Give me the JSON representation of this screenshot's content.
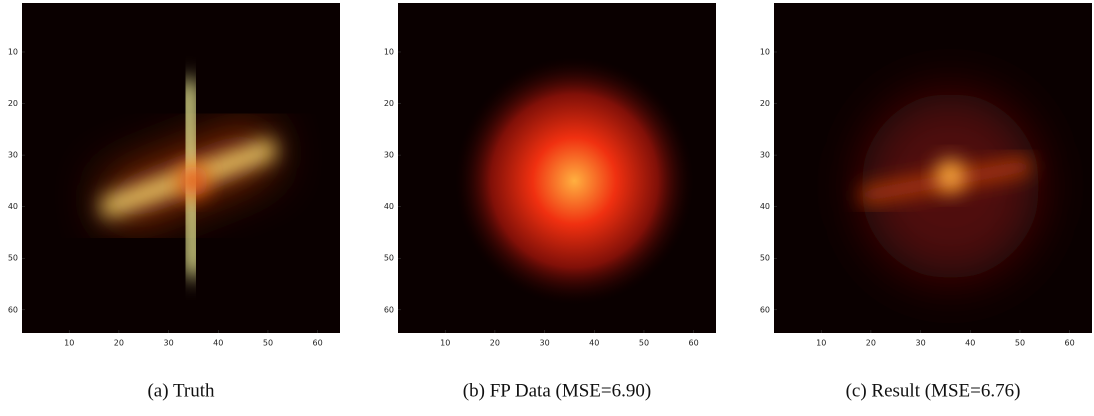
{
  "chart_data": [
    {
      "type": "image",
      "caption": "(a) Truth",
      "xlim": [
        0.5,
        64.5
      ],
      "ylim": [
        0.5,
        64.5
      ],
      "xticks": [
        10,
        20,
        30,
        40,
        50,
        60
      ],
      "yticks": [
        10,
        20,
        30,
        40,
        50,
        60
      ]
    },
    {
      "type": "image",
      "caption": "(b) FP Data (MSE=6.90)",
      "xlim": [
        0.5,
        64.5
      ],
      "ylim": [
        0.5,
        64.5
      ],
      "xticks": [
        10,
        20,
        30,
        40,
        50,
        60
      ],
      "yticks": [
        10,
        20,
        30,
        40,
        50,
        60
      ]
    },
    {
      "type": "image",
      "caption": "(c) Result (MSE=6.76)",
      "xlim": [
        0.5,
        64.5
      ],
      "ylim": [
        0.5,
        64.5
      ],
      "xticks": [
        10,
        20,
        30,
        40,
        50,
        60
      ],
      "yticks": [
        10,
        20,
        30,
        40,
        50,
        60
      ]
    }
  ]
}
